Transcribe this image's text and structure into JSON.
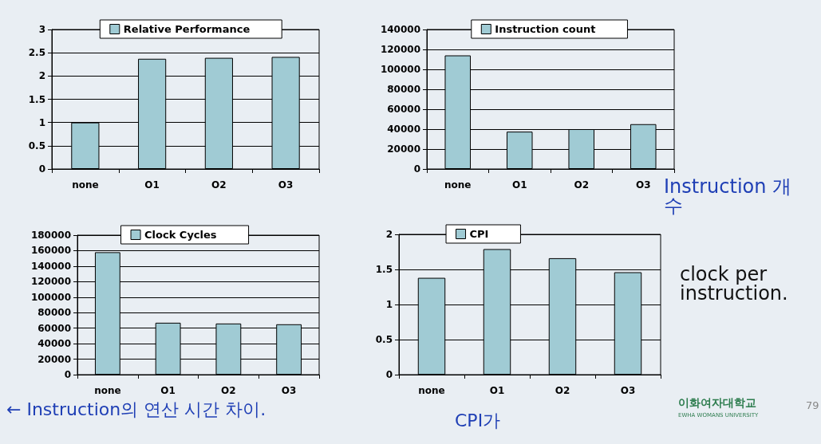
{
  "chart_data": [
    {
      "type": "bar",
      "categories": [
        "none",
        "O1",
        "O2",
        "O3"
      ],
      "series": [
        {
          "name": "Relative Performance",
          "color": "#a0cbd4",
          "values": [
            1,
            2.37,
            2.39,
            2.41
          ]
        }
      ],
      "ylim": [
        0,
        3
      ],
      "yticks": [
        0,
        0.5,
        1,
        1.5,
        2,
        2.5,
        3
      ],
      "grid": "y",
      "legend": "top"
    },
    {
      "type": "bar",
      "categories": [
        "none",
        "O1",
        "O2",
        "O3"
      ],
      "series": [
        {
          "name": "Instruction count",
          "color": "#a0cbd4",
          "values": [
            114000,
            37500,
            40000,
            45000
          ]
        }
      ],
      "ylim": [
        0,
        140000
      ],
      "yticks": [
        0,
        20000,
        40000,
        60000,
        80000,
        100000,
        120000,
        140000
      ],
      "grid": "y",
      "legend": "top",
      "annotations": [
        "Instruction 개수"
      ]
    },
    {
      "type": "bar",
      "categories": [
        "none",
        "O1",
        "O2",
        "O3"
      ],
      "series": [
        {
          "name": "Clock Cycles",
          "color": "#a0cbd4",
          "values": [
            158000,
            67000,
            66000,
            65000
          ]
        }
      ],
      "ylim": [
        0,
        180000
      ],
      "yticks": [
        0,
        20000,
        40000,
        60000,
        80000,
        100000,
        120000,
        140000,
        160000,
        180000
      ],
      "grid": "y",
      "legend": "top",
      "annotations": [
        "← Instruction의 연산 시간 차이."
      ]
    },
    {
      "type": "bar",
      "categories": [
        "none",
        "O1",
        "O2",
        "O3"
      ],
      "series": [
        {
          "name": "CPI",
          "color": "#a0cbd4",
          "values": [
            1.38,
            1.79,
            1.66,
            1.46
          ]
        }
      ],
      "ylim": [
        0,
        2
      ],
      "yticks": [
        0,
        0.5,
        1,
        1.5,
        2
      ],
      "grid": "y",
      "legend": "top",
      "annotations": [
        "clock per instruction.",
        "CPI가",
        "이화여자대학교",
        "EWHA WOMANS UNIVERSITY",
        "79"
      ]
    }
  ]
}
